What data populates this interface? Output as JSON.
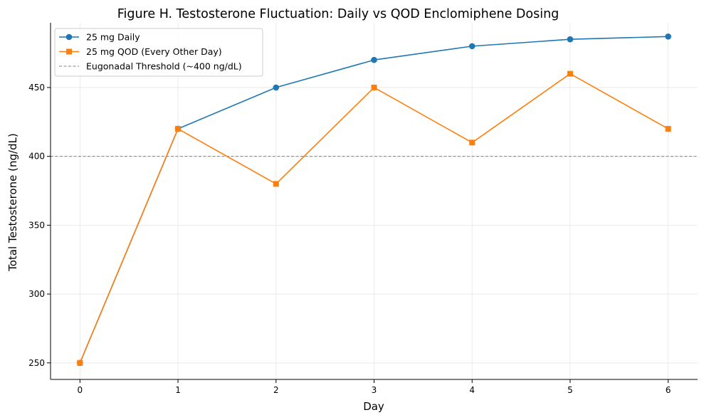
{
  "chart_data": {
    "type": "line",
    "title": "Figure H. Testosterone Fluctuation: Daily vs QOD Enclomiphene Dosing",
    "xlabel": "Day",
    "ylabel": "Total Testosterone (ng/dL)",
    "x": [
      0,
      1,
      2,
      3,
      4,
      5,
      6
    ],
    "x_ticks": [
      "0",
      "1",
      "2",
      "3",
      "4",
      "5",
      "6"
    ],
    "y_ticks": [
      "250",
      "300",
      "350",
      "400",
      "450"
    ],
    "xlim": [
      -0.3,
      6.3
    ],
    "ylim": [
      238,
      497
    ],
    "grid": true,
    "legend_position": "top-left",
    "series": [
      {
        "name": "25 mg Daily",
        "values": [
          250,
          420,
          450,
          470,
          480,
          485,
          487
        ],
        "color": "#1f77b4",
        "marker": "circle"
      },
      {
        "name": "25 mg QOD (Every Other Day)",
        "values": [
          250,
          420,
          380,
          450,
          410,
          460,
          420
        ],
        "color": "#ff7f0e",
        "marker": "square"
      }
    ],
    "reference_lines": [
      {
        "name": "Eugonadal Threshold (~400 ng/dL)",
        "y": 400,
        "color": "#808080",
        "style": "dashed"
      }
    ]
  }
}
